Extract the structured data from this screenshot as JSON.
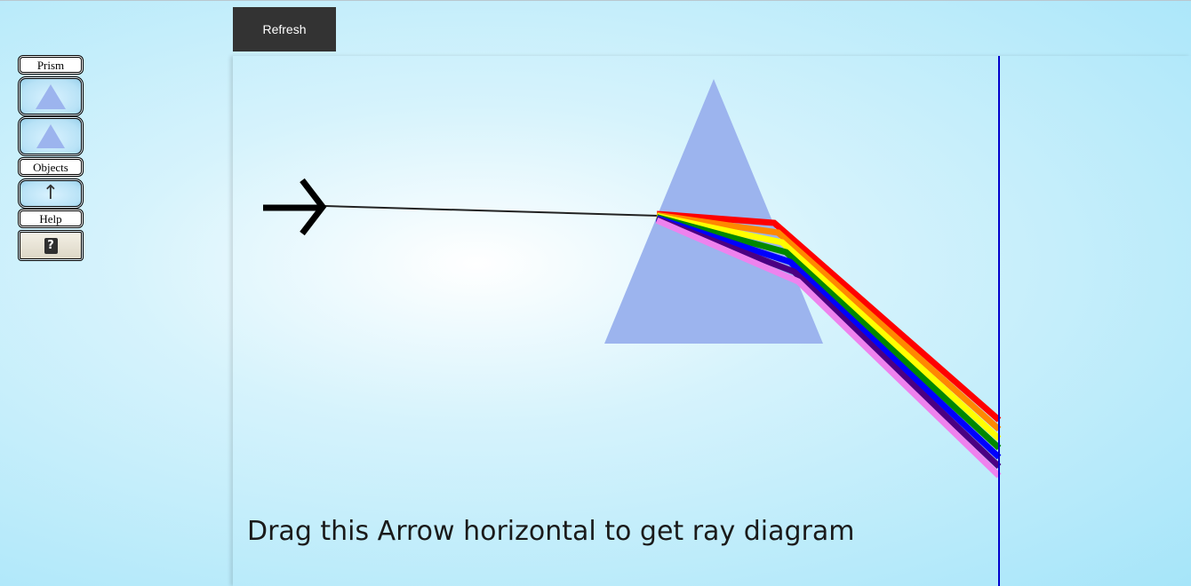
{
  "toolbar": {
    "prism_label": "Prism",
    "objects_label": "Objects",
    "objects_icon": "↑",
    "help_label": "Help",
    "help_icon": "?"
  },
  "refresh_label": "Refresh",
  "instruction": "Drag this Arrow horizontal to get ray diagram",
  "colors": {
    "prism": "#9cb4ee",
    "screen_line": "#0000cc",
    "spectrum": [
      "#ff0000",
      "#ff8800",
      "#ffff00",
      "#008800",
      "#0000ff",
      "#4b0082",
      "#ee82ee"
    ]
  }
}
